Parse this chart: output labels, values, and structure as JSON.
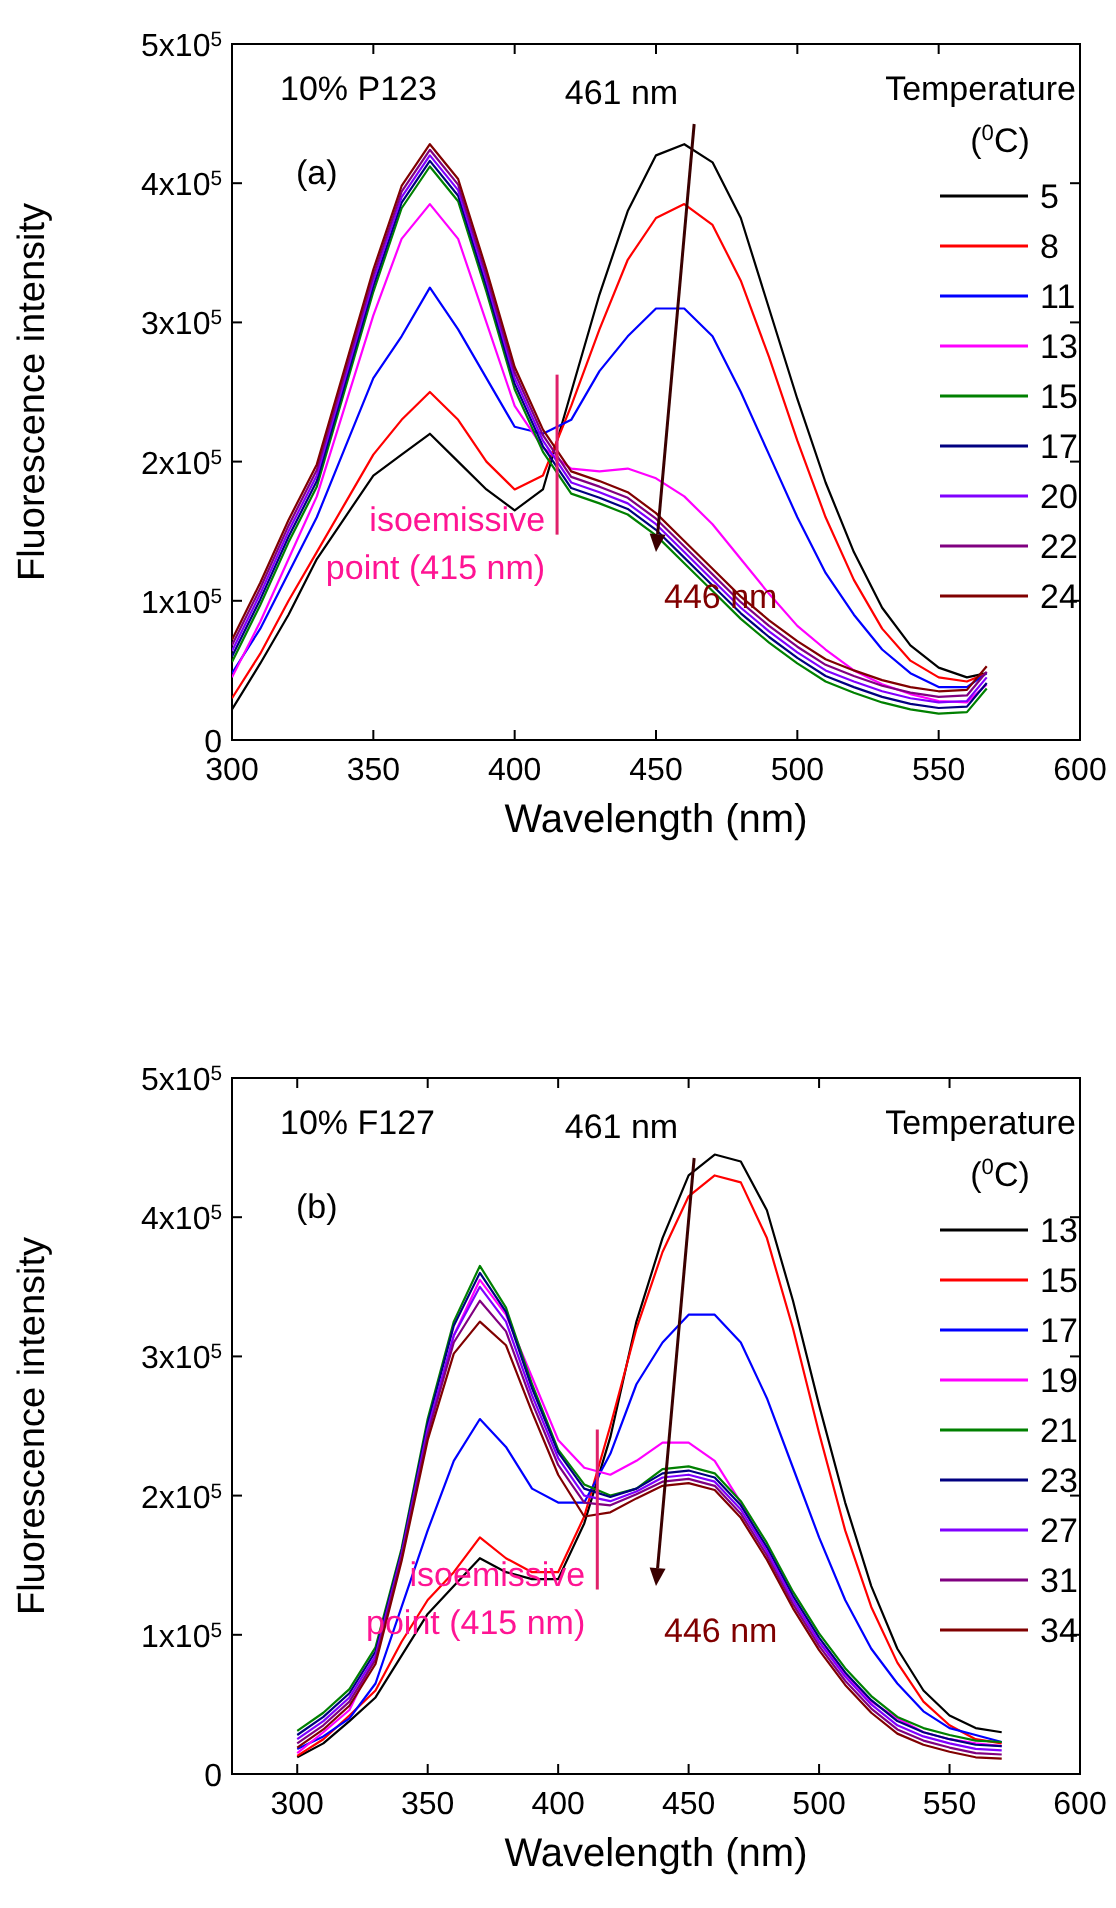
{
  "chart_data": [
    {
      "type": "line",
      "xlabel": "Wavelength (nm)",
      "ylabel": "Fluorescence intensity",
      "legend_title": "Temperature ($^{0}$C)",
      "legend": "right",
      "xlim": [
        300,
        600
      ],
      "xticks": [
        300,
        350,
        400,
        450,
        500,
        550,
        600
      ],
      "ylim": [
        0,
        500000
      ],
      "yticks": [
        0,
        {
          "value": 100000,
          "label": "1x10$^{5}$"
        },
        {
          "value": 200000,
          "label": "2x10$^{5}$"
        },
        {
          "value": 300000,
          "label": "3x10$^{5}$"
        },
        {
          "value": 400000,
          "label": "4x10$^{5}$"
        },
        {
          "value": 500000,
          "label": "5x10$^{5}$"
        }
      ],
      "annotations": [
        "10% P123",
        "(a)",
        "461 nm",
        "446 nm",
        {
          "text": "isoemissive point (415 nm)",
          "x": 415,
          "y": 205000
        }
      ],
      "x": [
        300,
        310,
        320,
        330,
        340,
        350,
        360,
        370,
        380,
        390,
        400,
        410,
        420,
        430,
        440,
        450,
        460,
        470,
        480,
        490,
        500,
        510,
        520,
        530,
        540,
        550,
        560,
        567
      ],
      "series": [
        {
          "name": "5",
          "color": "#000000",
          "values": [
            22000.0,
            55000.0,
            90000.0,
            130000.0,
            160000.0,
            190000.0,
            205000.0,
            220000.0,
            200000.0,
            180000.0,
            165000.0,
            180000.0,
            250000.0,
            320000.0,
            380000.0,
            420000.0,
            428000.0,
            415000.0,
            375000.0,
            310000.0,
            245000.0,
            185000.0,
            135000.0,
            95000.0,
            68000.0,
            52000.0,
            45000.0,
            48000.0
          ]
        },
        {
          "name": "8",
          "color": "#ff0000",
          "values": [
            30000.0,
            62000.0,
            100000.0,
            135000.0,
            170000.0,
            205000.0,
            230000.0,
            250000.0,
            230000.0,
            200000.0,
            180000.0,
            190000.0,
            240000.0,
            295000.0,
            345000.0,
            375000.0,
            385000.0,
            370000.0,
            330000.0,
            275000.0,
            215000.0,
            160000.0,
            115000.0,
            80000.0,
            57000.0,
            45000.0,
            42000.0,
            48000.0
          ]
        },
        {
          "name": "11",
          "color": "#0000ff",
          "values": [
            48000.0,
            80000.0,
            120000.0,
            160000.0,
            210000.0,
            260000.0,
            290000.0,
            325000.0,
            295000.0,
            260000.0,
            225000.0,
            220000.0,
            230000.0,
            265000.0,
            290000.0,
            310000.0,
            310000.0,
            290000.0,
            250000.0,
            205000.0,
            160000.0,
            120000.0,
            90000.0,
            65000.0,
            48000.0,
            38000.0,
            38000.0,
            48000.0
          ]
        },
        {
          "name": "13",
          "color": "#ff00ff",
          "values": [
            45000.0,
            85000.0,
            130000.0,
            175000.0,
            240000.0,
            305000.0,
            360000.0,
            385000.0,
            360000.0,
            300000.0,
            240000.0,
            210000.0,
            195000.0,
            193000.0,
            195000.0,
            188000.0,
            175000.0,
            155000.0,
            130000.0,
            105000.0,
            82000.0,
            65000.0,
            50000.0,
            40000.0,
            33000.0,
            28000.0,
            27000.0,
            40000.0
          ]
        },
        {
          "name": "15",
          "color": "#008000",
          "values": [
            56000.0,
            97000.0,
            142000.0,
            182000.0,
            252000.0,
            322000.0,
            382000.0,
            412000.0,
            387000.0,
            322000.0,
            252000.0,
            207000.0,
            177000.0,
            170000.0,
            162000.0,
            147000.0,
            127000.0,
            107000.0,
            87000.0,
            70000.0,
            55000.0,
            42000.0,
            34000.0,
            27000.0,
            22000.0,
            19000.0,
            20000.0,
            37000.0
          ]
        },
        {
          "name": "17",
          "color": "#000080",
          "values": [
            60000.0,
            101000.0,
            146000.0,
            186000.0,
            256000.0,
            326000.0,
            386000.0,
            416000.0,
            391000.0,
            326000.0,
            256000.0,
            211000.0,
            181000.0,
            174000.0,
            166000.0,
            151000.0,
            131000.0,
            111000.0,
            91000.0,
            74000.0,
            59000.0,
            46000.0,
            38000.0,
            31000.0,
            26000.0,
            23000.0,
            24000.0,
            41000.0
          ]
        },
        {
          "name": "20",
          "color": "#8000ff",
          "values": [
            64000.0,
            105000.0,
            150000.0,
            190000.0,
            260000.0,
            330000.0,
            390000.0,
            420000.0,
            395000.0,
            330000.0,
            260000.0,
            215000.0,
            185000.0,
            178000.0,
            170000.0,
            155000.0,
            135000.0,
            115000.0,
            95000.0,
            78000.0,
            63000.0,
            50000.0,
            42000.0,
            35000.0,
            30000.0,
            27000.0,
            28000.0,
            45000.0
          ]
        },
        {
          "name": "22",
          "color": "#800080",
          "values": [
            68000.0,
            109000.0,
            154000.0,
            194000.0,
            264000.0,
            334000.0,
            394000.0,
            424000.0,
            399000.0,
            334000.0,
            264000.0,
            219000.0,
            189000.0,
            182000.0,
            174000.0,
            159000.0,
            139000.0,
            119000.0,
            99000.0,
            82000.0,
            67000.0,
            54000.0,
            46000.0,
            39000.0,
            34000.0,
            31000.0,
            32000.0,
            49000.0
          ]
        },
        {
          "name": "24",
          "color": "#800000",
          "values": [
            72000.0,
            113000.0,
            158000.0,
            198000.0,
            268000.0,
            338000.0,
            398000.0,
            428000.0,
            403000.0,
            338000.0,
            268000.0,
            223000.0,
            193000.0,
            186000.0,
            178000.0,
            163000.0,
            143000.0,
            123000.0,
            103000.0,
            86000.0,
            71000.0,
            58000.0,
            50000.0,
            43000.0,
            38000.0,
            35000.0,
            36000.0,
            53000.0
          ]
        }
      ]
    },
    {
      "type": "line",
      "xlabel": "Wavelength (nm)",
      "ylabel": "Fluorescence intensity",
      "legend_title": "Temperature ($^{0}$C)",
      "legend": "right",
      "xlim": [
        275,
        600
      ],
      "xticks": [
        300,
        350,
        400,
        450,
        500,
        550,
        600
      ],
      "ylim": [
        0,
        500000
      ],
      "yticks": [
        0,
        {
          "value": 100000,
          "label": "1x10$^{5}$"
        },
        {
          "value": 200000,
          "label": "2x10$^{5}$"
        },
        {
          "value": 300000,
          "label": "3x10$^{5}$"
        },
        {
          "value": 400000,
          "label": "4x10$^{5}$"
        },
        {
          "value": 500000,
          "label": "5x10$^{5}$"
        }
      ],
      "annotations": [
        "10% F127",
        "(b)",
        "461 nm",
        "446 nm",
        {
          "text": "isoemissive point (415 nm)",
          "x": 415,
          "y": 190000
        }
      ],
      "x": [
        300,
        310,
        320,
        330,
        340,
        350,
        360,
        370,
        380,
        390,
        400,
        410,
        420,
        430,
        440,
        450,
        460,
        470,
        480,
        490,
        500,
        510,
        520,
        530,
        540,
        550,
        560,
        570
      ],
      "series": [
        {
          "name": "13",
          "color": "#000000",
          "values": [
            12000.0,
            22000.0,
            38000.0,
            55000.0,
            85000.0,
            115000.0,
            135000.0,
            155000.0,
            145000.0,
            140000.0,
            140000.0,
            180000.0,
            242000.0,
            325000.0,
            385000.0,
            430000.0,
            445000.0,
            440000.0,
            405000.0,
            340000.0,
            265000.0,
            195000.0,
            135000.0,
            90000.0,
            60000.0,
            42000.0,
            33000.0,
            30000.0
          ]
        },
        {
          "name": "15",
          "color": "#ff0000",
          "values": [
            13000.0,
            25000.0,
            42000.0,
            60000.0,
            95000.0,
            125000.0,
            145000.0,
            170000.0,
            155000.0,
            145000.0,
            145000.0,
            185000.0,
            250000.0,
            320000.0,
            375000.0,
            415000.0,
            430000.0,
            425000.0,
            385000.0,
            320000.0,
            245000.0,
            175000.0,
            120000.0,
            80000.0,
            52000.0,
            35000.0,
            25000.0,
            22000.0
          ]
        },
        {
          "name": "17",
          "color": "#0000ff",
          "values": [
            18000.0,
            27000.0,
            40000.0,
            65000.0,
            120000.0,
            175000.0,
            225000.0,
            255000.0,
            235000.0,
            205000.0,
            195000.0,
            195000.0,
            230000.0,
            280000.0,
            310000.0,
            330000.0,
            330000.0,
            310000.0,
            270000.0,
            220000.0,
            170000.0,
            125000.0,
            90000.0,
            65000.0,
            45000.0,
            33000.0,
            28000.0,
            23000.0
          ]
        },
        {
          "name": "19",
          "color": "#ff00ff",
          "values": [
            15000.0,
            30000.0,
            46000.0,
            85000.0,
            155000.0,
            245000.0,
            315000.0,
            355000.0,
            330000.0,
            285000.0,
            240000.0,
            220000.0,
            215000.0,
            225000.0,
            238000.0,
            238000.0,
            225000.0,
            195000.0,
            160000.0,
            125000.0,
            95000.0,
            72000.0,
            52000.0,
            40000.0,
            30000.0,
            25000.0,
            22000.0,
            20000.0
          ]
        },
        {
          "name": "21",
          "color": "#008000",
          "values": [
            31000.0,
            44000.0,
            61000.0,
            91000.0,
            162000.0,
            255000.0,
            325000.0,
            365000.0,
            335000.0,
            280000.0,
            233000.0,
            208000.0,
            200000.0,
            205000.0,
            219000.0,
            221000.0,
            216000.0,
            196000.0,
            166000.0,
            131000.0,
            101000.0,
            76000.0,
            56000.0,
            41000.0,
            33000.0,
            28000.0,
            24000.0,
            23000.0
          ]
        },
        {
          "name": "23",
          "color": "#000080",
          "values": [
            28000.0,
            41000.0,
            58000.0,
            88000.0,
            160000.0,
            252000.0,
            322000.0,
            360000.0,
            332000.0,
            277000.0,
            231000.0,
            205000.0,
            199000.0,
            205000.0,
            216000.0,
            218000.0,
            213000.0,
            193000.0,
            163000.0,
            128000.0,
            98000.0,
            73000.0,
            53000.0,
            38000.0,
            30000.0,
            25000.0,
            21000.0,
            20000.0
          ]
        },
        {
          "name": "27",
          "color": "#8000ff",
          "values": [
            25000.0,
            38000.0,
            55000.0,
            85000.0,
            158000.0,
            248000.0,
            315000.0,
            350000.0,
            325000.0,
            272000.0,
            227000.0,
            200000.0,
            196000.0,
            203000.0,
            213000.0,
            215000.0,
            210000.0,
            190000.0,
            160000.0,
            125000.0,
            95000.0,
            70000.0,
            50000.0,
            35000.0,
            27000.0,
            22000.0,
            18000.0,
            17000.0
          ]
        },
        {
          "name": "31",
          "color": "#800080",
          "values": [
            22000.0,
            35000.0,
            52000.0,
            82000.0,
            156000.0,
            244000.0,
            310000.0,
            340000.0,
            318000.0,
            267000.0,
            222000.0,
            195000.0,
            193000.0,
            201000.0,
            210000.0,
            212000.0,
            207000.0,
            187000.0,
            157000.0,
            122000.0,
            92000.0,
            67000.0,
            47000.0,
            32000.0,
            24000.0,
            19000.0,
            15000.0,
            14000.0
          ]
        },
        {
          "name": "34",
          "color": "#800000",
          "values": [
            19000.0,
            32000.0,
            49000.0,
            79000.0,
            153000.0,
            240000.0,
            302000.0,
            325000.0,
            308000.0,
            260000.0,
            215000.0,
            185000.0,
            188000.0,
            198000.0,
            207000.0,
            209000.0,
            204000.0,
            184000.0,
            154000.0,
            119000.0,
            89000.0,
            64000.0,
            44000.0,
            29000.0,
            21000.0,
            16000.0,
            12000.0,
            11000.0
          ]
        }
      ]
    }
  ]
}
